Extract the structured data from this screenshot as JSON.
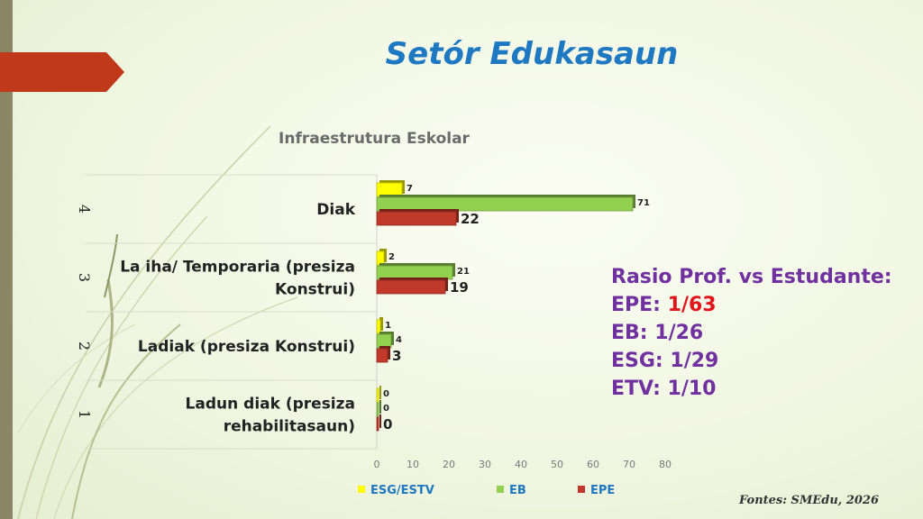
{
  "slide": {
    "title": "Setór Edukasaun",
    "source": "Fontes: SMEdu, 2026"
  },
  "ratio": {
    "heading": "Rasio Prof. vs Estudante:",
    "lines": [
      {
        "label": "EPE: ",
        "value": "1/63",
        "highlight": true
      },
      {
        "label": "EB: ",
        "value": "1/26",
        "highlight": false
      },
      {
        "label": "ESG: ",
        "value": "1/29",
        "highlight": false
      },
      {
        "label": "ETV: ",
        "value": "1/10",
        "highlight": false
      }
    ]
  },
  "chart_data": {
    "type": "bar",
    "orientation": "horizontal",
    "title": "Infraestrutura Eskolar",
    "categories": [
      {
        "index": "4",
        "label": [
          "Diak"
        ]
      },
      {
        "index": "3",
        "label": [
          "La iha/ Temporaria (presiza",
          "Konstrui)"
        ]
      },
      {
        "index": "2",
        "label": [
          "Ladiak (presiza Konstrui)"
        ]
      },
      {
        "index": "1",
        "label": [
          "Ladun diak (presiza",
          "rehabilitasaun)"
        ]
      }
    ],
    "series": [
      {
        "name": "ESG/ESTV",
        "color": "#ffff00",
        "values": [
          7,
          2,
          1,
          0
        ]
      },
      {
        "name": "EB",
        "color": "#92d050",
        "values": [
          71,
          21,
          4,
          0
        ]
      },
      {
        "name": "EPE",
        "color": "#c0392b",
        "values": [
          22,
          19,
          3,
          0
        ]
      }
    ],
    "xlim": [
      0,
      80
    ],
    "xticks": [
      0,
      10,
      20,
      30,
      40,
      50,
      60,
      70,
      80
    ],
    "grid": false,
    "legend_position": "bottom"
  }
}
